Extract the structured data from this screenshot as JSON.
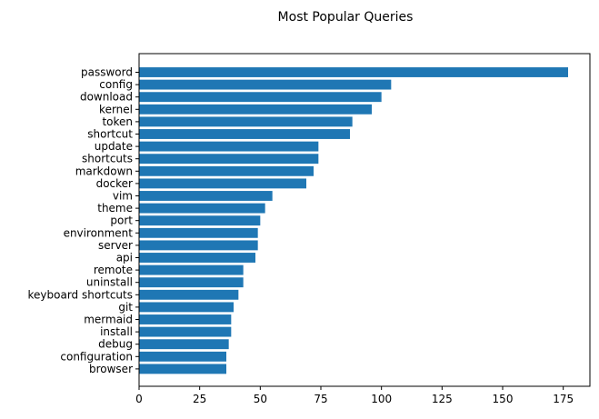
{
  "chart_data": {
    "type": "bar",
    "orientation": "horizontal",
    "title": "Most Popular Queries",
    "xlabel": "",
    "ylabel": "",
    "categories": [
      "password",
      "config",
      "download",
      "kernel",
      "token",
      "shortcut",
      "update",
      "shortcuts",
      "markdown",
      "docker",
      "vim",
      "theme",
      "port",
      "environment",
      "server",
      "api",
      "remote",
      "uninstall",
      "keyboard shortcuts",
      "git",
      "mermaid",
      "install",
      "debug",
      "configuration",
      "browser"
    ],
    "values": [
      177,
      104,
      100,
      96,
      88,
      87,
      74,
      74,
      72,
      69,
      55,
      52,
      50,
      49,
      49,
      48,
      43,
      43,
      41,
      39,
      38,
      38,
      37,
      36,
      36
    ],
    "xlim": [
      0,
      186
    ],
    "xticks": [
      0,
      25,
      50,
      75,
      100,
      125,
      150,
      175
    ],
    "grid": false,
    "bar_color": "#1f77b4"
  }
}
